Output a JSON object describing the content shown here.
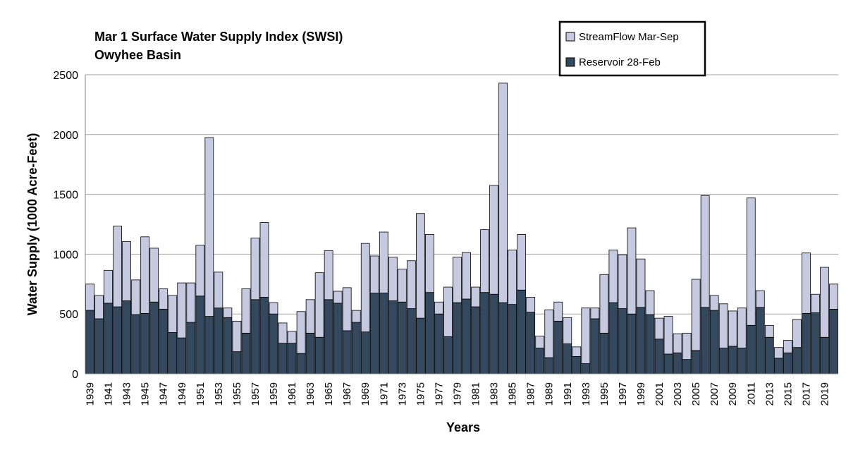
{
  "chart_data": {
    "type": "bar",
    "stacked": true,
    "title": "Mar 1 Surface Water Supply Index (SWSI)",
    "subtitle": "Owyhee Basin",
    "xlabel": "Years",
    "ylabel": "Water Supply (1000 Acre-Feet)",
    "ylim": [
      0,
      2500
    ],
    "yticks": [
      0,
      500,
      1000,
      1500,
      2000,
      2500
    ],
    "grid": true,
    "legend_position": "top-right",
    "categories": [
      "1939",
      "1940",
      "1941",
      "1942",
      "1943",
      "1944",
      "1945",
      "1946",
      "1947",
      "1948",
      "1949",
      "1950",
      "1951",
      "1952",
      "1953",
      "1954",
      "1955",
      "1956",
      "1957",
      "1958",
      "1959",
      "1960",
      "1961",
      "1962",
      "1963",
      "1964",
      "1965",
      "1966",
      "1967",
      "1968",
      "1969",
      "1970",
      "1971",
      "1972",
      "1973",
      "1974",
      "1975",
      "1976",
      "1977",
      "1978",
      "1979",
      "1980",
      "1981",
      "1982",
      "1983",
      "1984",
      "1985",
      "1986",
      "1987",
      "1988",
      "1989",
      "1990",
      "1991",
      "1992",
      "1993",
      "1994",
      "1995",
      "1996",
      "1997",
      "1998",
      "1999",
      "2000",
      "2001",
      "2002",
      "2003",
      "2004",
      "2005",
      "2006",
      "2007",
      "2008",
      "2009",
      "2010",
      "2011",
      "2012",
      "2013",
      "2014",
      "2015",
      "2016",
      "2017",
      "2018",
      "2019",
      "2020"
    ],
    "tick_labels": [
      "1939",
      "1941",
      "1943",
      "1945",
      "1947",
      "1949",
      "1951",
      "1953",
      "1955",
      "1957",
      "1959",
      "1961",
      "1963",
      "1965",
      "1967",
      "1969",
      "1971",
      "1973",
      "1975",
      "1977",
      "1979",
      "1981",
      "1983",
      "1985",
      "1987",
      "1989",
      "1991",
      "1993",
      "1995",
      "1997",
      "1999",
      "2001",
      "2003",
      "2005",
      "2007",
      "2009",
      "2011",
      "2013",
      "2015",
      "2017",
      "2019"
    ],
    "series": [
      {
        "name": "Reservoir 28-Feb",
        "color": "#34495e",
        "values": [
          530,
          460,
          590,
          560,
          610,
          495,
          505,
          600,
          540,
          345,
          300,
          430,
          650,
          480,
          550,
          470,
          185,
          340,
          620,
          640,
          500,
          255,
          255,
          170,
          340,
          305,
          620,
          590,
          360,
          430,
          350,
          675,
          675,
          610,
          600,
          545,
          465,
          680,
          500,
          310,
          595,
          625,
          560,
          680,
          665,
          595,
          580,
          700,
          515,
          215,
          135,
          440,
          250,
          145,
          85,
          460,
          340,
          595,
          545,
          500,
          555,
          495,
          290,
          165,
          175,
          120,
          195,
          555,
          530,
          215,
          230,
          215,
          405,
          555,
          305,
          130,
          175,
          220,
          505,
          510,
          305,
          540
        ]
      },
      {
        "name": "StreamFlow Mar-Sep",
        "color": "#c5cae0",
        "values": [
          220,
          195,
          275,
          675,
          495,
          290,
          640,
          450,
          170,
          310,
          460,
          330,
          425,
          1495,
          300,
          80,
          255,
          370,
          515,
          625,
          95,
          170,
          100,
          350,
          280,
          540,
          410,
          100,
          360,
          100,
          740,
          310,
          510,
          365,
          275,
          400,
          875,
          485,
          100,
          415,
          380,
          390,
          165,
          525,
          910,
          1835,
          455,
          465,
          125,
          100,
          400,
          160,
          220,
          80,
          465,
          90,
          490,
          440,
          450,
          720,
          405,
          200,
          175,
          315,
          160,
          220,
          595,
          935,
          125,
          370,
          295,
          335,
          1065,
          140,
          100,
          90,
          105,
          235,
          505,
          155,
          585,
          210
        ]
      }
    ]
  }
}
